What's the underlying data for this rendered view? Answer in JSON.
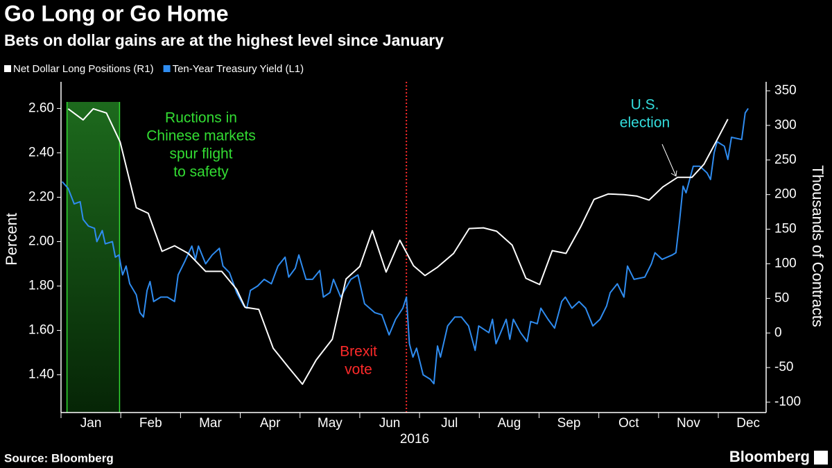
{
  "chart_data": {
    "type": "line",
    "title": "Go Long or Go Home",
    "subtitle": "Bets on dollar gains are at the highest level since January",
    "ylabel": "Percent",
    "y2label": "Thousands of Contracts",
    "x_label": "2016",
    "source": "Source: Bloomberg",
    "brand": "Bloomberg",
    "categories": [
      "Jan",
      "Feb",
      "Mar",
      "Apr",
      "May",
      "Jun",
      "Jul",
      "Aug",
      "Sep",
      "Oct",
      "Nov",
      "Dec"
    ],
    "xlim": [
      0,
      11.8
    ],
    "ylim": [
      1.23,
      2.72
    ],
    "yticks": [
      {
        "value": 1.4,
        "label": "1.40"
      },
      {
        "value": 1.6,
        "label": "1.60"
      },
      {
        "value": 1.8,
        "label": "1.80"
      },
      {
        "value": 2.0,
        "label": "2.00"
      },
      {
        "value": 2.2,
        "label": "2.20"
      },
      {
        "value": 2.4,
        "label": "2.40"
      },
      {
        "value": 2.6,
        "label": "2.60"
      }
    ],
    "y2lim": [
      -115,
      363
    ],
    "y2ticks": [
      -100,
      -50,
      0,
      50,
      100,
      150,
      200,
      250,
      300,
      350
    ],
    "series": [
      {
        "name": "Net Dollar Long Positions (R1)",
        "color": "#ffffff",
        "axis": "y2",
        "x": [
          0.12,
          0.37,
          0.54,
          0.76,
          0.99,
          1.26,
          1.46,
          1.69,
          1.9,
          2.13,
          2.42,
          2.69,
          2.94,
          3.08,
          3.31,
          3.55,
          3.81,
          4.04,
          4.27,
          4.54,
          4.77,
          5.0,
          5.21,
          5.44,
          5.67,
          5.9,
          6.09,
          6.3,
          6.57,
          6.83,
          7.07,
          7.29,
          7.55,
          7.78,
          8.01,
          8.22,
          8.45,
          8.7,
          8.92,
          9.16,
          9.42,
          9.63,
          9.84,
          10.07,
          10.32,
          10.56,
          10.76,
          10.99,
          11.16
        ],
        "values": [
          324,
          308,
          324,
          318,
          276,
          181,
          173,
          118,
          126,
          115,
          89,
          89,
          63,
          37,
          34,
          -22,
          -50,
          -74,
          -39,
          -9,
          78,
          96,
          148,
          88,
          134,
          97,
          83,
          95,
          115,
          151,
          152,
          147,
          127,
          79,
          70,
          119,
          115,
          154,
          193,
          201,
          200,
          198,
          192,
          211,
          225,
          225,
          244,
          281,
          309
        ]
      },
      {
        "name": "Ten-Year Treasury Yield (L1)",
        "color": "#2f8cf0",
        "axis": "y",
        "x": [
          0.02,
          0.12,
          0.22,
          0.32,
          0.37,
          0.46,
          0.56,
          0.6,
          0.69,
          0.74,
          0.86,
          0.91,
          0.97,
          1.03,
          1.09,
          1.15,
          1.26,
          1.32,
          1.38,
          1.44,
          1.49,
          1.55,
          1.67,
          1.78,
          1.9,
          1.96,
          2.07,
          2.19,
          2.25,
          2.3,
          2.42,
          2.53,
          2.65,
          2.71,
          2.82,
          2.94,
          3.06,
          3.11,
          3.17,
          3.29,
          3.4,
          3.52,
          3.63,
          3.75,
          3.81,
          3.92,
          3.98,
          4.1,
          4.21,
          4.33,
          4.39,
          4.5,
          4.56,
          4.68,
          4.85,
          4.97,
          5.08,
          5.25,
          5.37,
          5.49,
          5.6,
          5.72,
          5.78,
          5.83,
          5.89,
          5.95,
          6.06,
          6.18,
          6.24,
          6.3,
          6.35,
          6.47,
          6.59,
          6.7,
          6.82,
          6.93,
          6.99,
          7.16,
          7.22,
          7.28,
          7.45,
          7.51,
          7.57,
          7.69,
          7.8,
          7.86,
          7.97,
          8.03,
          8.15,
          8.26,
          8.38,
          8.44,
          8.55,
          8.67,
          8.78,
          8.9,
          9.02,
          9.13,
          9.19,
          9.31,
          9.42,
          9.48,
          9.59,
          9.77,
          9.88,
          9.94,
          10.06,
          10.23,
          10.29,
          10.35,
          10.41,
          10.46,
          10.58,
          10.69,
          10.81,
          10.87,
          10.93,
          10.98,
          11.1,
          11.16,
          11.22,
          11.39,
          11.45,
          11.5
        ],
        "values": [
          2.27,
          2.24,
          2.17,
          2.18,
          2.1,
          2.07,
          2.06,
          2.0,
          2.05,
          1.99,
          2.0,
          1.93,
          1.94,
          1.85,
          1.89,
          1.81,
          1.76,
          1.68,
          1.66,
          1.78,
          1.82,
          1.73,
          1.75,
          1.75,
          1.73,
          1.85,
          1.91,
          1.98,
          1.92,
          1.98,
          1.9,
          1.94,
          1.97,
          1.89,
          1.86,
          1.77,
          1.71,
          1.7,
          1.78,
          1.8,
          1.83,
          1.81,
          1.89,
          1.93,
          1.84,
          1.88,
          1.94,
          1.83,
          1.83,
          1.87,
          1.75,
          1.77,
          1.83,
          1.75,
          1.83,
          1.85,
          1.72,
          1.68,
          1.67,
          1.58,
          1.65,
          1.7,
          1.75,
          1.54,
          1.48,
          1.52,
          1.4,
          1.38,
          1.36,
          1.53,
          1.48,
          1.62,
          1.66,
          1.66,
          1.62,
          1.51,
          1.62,
          1.59,
          1.65,
          1.54,
          1.65,
          1.56,
          1.65,
          1.59,
          1.55,
          1.64,
          1.63,
          1.7,
          1.65,
          1.61,
          1.73,
          1.75,
          1.7,
          1.73,
          1.7,
          1.62,
          1.65,
          1.71,
          1.77,
          1.81,
          1.75,
          1.89,
          1.83,
          1.84,
          1.9,
          1.95,
          1.92,
          1.94,
          1.95,
          2.09,
          2.25,
          2.22,
          2.34,
          2.34,
          2.31,
          2.28,
          2.4,
          2.45,
          2.43,
          2.37,
          2.47,
          2.46,
          2.58,
          2.6
        ]
      }
    ],
    "shaded_range": [
      0.1,
      0.98
    ],
    "event_x": 5.78,
    "annotations": [
      {
        "lines": [
          "Ructions in",
          "Chinese markets",
          "spur flight",
          "to safety"
        ],
        "color": "#33dd33"
      },
      {
        "lines": [
          "Brexit",
          "vote"
        ],
        "color": "#ff2a2a"
      },
      {
        "lines": [
          "U.S.",
          "election"
        ],
        "color": "#33dddd"
      }
    ]
  }
}
